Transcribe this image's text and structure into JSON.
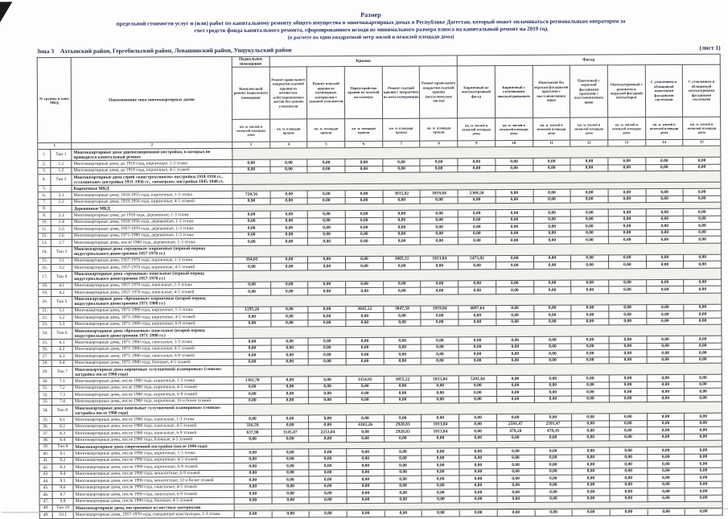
{
  "page": {
    "title_lines": [
      "Размер",
      "предельной стоимости услуг и (или) работ по капитальному ремонту общего имущества в многоквартирных домах в Республике Дагестан, который может оплачиваться региональным оператором  за",
      "счет средств фонда капитального ремонта, сформированного исходя из минимального размера взноса на капитальный ремонт на 2019 год",
      "(в расчете на один квадратный метр жилой и нежилой площади дома)"
    ],
    "zone_label": "Зона 3",
    "zone_text": "Ахтынский район, Гергебильский район, Левашинский район, Унцукульский район",
    "sheet_label": "(лист 1)"
  },
  "table": {
    "corner_header": "№ группы и зоны МКД",
    "name_header": "Наименование типа многоквартирных домов",
    "groups": [
      {
        "label": "Подвальное помещение",
        "span": 1
      },
      {
        "label": "Крыша",
        "span": 5
      },
      {
        "label": "Фасад",
        "span": 7
      }
    ],
    "value_columns": [
      {
        "label": "Комплексный ремонт подвального помещения",
        "unit": "кв. м. жилой и нежилой площади дома"
      },
      {
        "label": "Ремонт кровельного покрытия скатной крыши из волнистых асбестоцементных листов без замены утеплителя",
        "unit": "кв. м. площади кровли"
      },
      {
        "label": "Ремонт плоской крыши из полимерных материалов с заменой утеплителя",
        "unit": "кв. м. площади кровли"
      },
      {
        "label": "Переустройство крыши из плоской на скатную",
        "unit": "кв. м. площади кровли"
      },
      {
        "label": "Ремонт скатной крыши с покрытием из металлочерепицы",
        "unit": "кв. м. площади кровли"
      },
      {
        "label": "Ремонт кровельного покрытия скатной крыши (металлические листы)",
        "unit": "кв. м. площади кровли"
      },
      {
        "label": "Кирпичный не оштукатуренный фасад",
        "unit": "кв. м. жилой и нежилой площади дома"
      },
      {
        "label": "Кирпичный с утепляющим оштукатуриванием",
        "unit": "кв. м. жилой и нежилой площади дома"
      },
      {
        "label": "Панельный без окраски фасадными красками с восстановлением швов",
        "unit": "кв. м. жилой и нежилой площади дома"
      },
      {
        "label": "Панельный с окраской фасадными красками с восстановлением швов",
        "unit": "кв. м. жилой и нежилой площади дома"
      },
      {
        "label": "Оштукатуренный с ремонтом и окраской фасадной штукатурки",
        "unit": "кв. м. жилой и нежилой площади дома"
      },
      {
        "label": "С утеплением и облицовкой навесными фасадными системами",
        "unit": "кв. м. жилой и нежилой площади дома"
      },
      {
        "label": "С утеплением и облицовкой штукатурными фасадными системами",
        "unit": "кв. м. жилой и нежилой площади дома"
      }
    ],
    "column_numbers": [
      "1",
      "2",
      "3",
      "4",
      "5",
      "6",
      "7",
      "8",
      "9",
      "10",
      "11",
      "12",
      "13",
      "14",
      "15"
    ],
    "zero_value": "0,00",
    "rows": [
      {
        "no": "1.",
        "code": "Тип 1",
        "kind": "group",
        "name": "Многоквартирные дома дореволюционной постройки, в которых не проводился капитальный ремонт"
      },
      {
        "no": "2.",
        "code": "1.1",
        "name": "Многоквартирные дома, до 1918 года, кирпичные, 1-3 этажа"
      },
      {
        "no": "3.",
        "code": "1.2",
        "name": "Многоквартирные дома, до 1918 года, кирпичные, 4-5 этажей"
      },
      {
        "no": "4.",
        "code": "Тип 2",
        "kind": "group",
        "name": "Многоквартирные дома серий «конструктивизм» постройки 1918-1930 гг., «сталинские» постройки 1931-1956 гг., «немецкие» постройки 1945-1948 гг."
      },
      {
        "no": "5.",
        "code": "",
        "kind": "sub",
        "name": "Кирпичные МКД"
      },
      {
        "no": "6.",
        "code": "2.1",
        "name": "Многоквартирные дома, 1918-1955 года, кирпичные, 1-3 этажа",
        "values": [
          "720,56",
          "0,00",
          "0,00",
          "0,00",
          "3015,92",
          "1019,84",
          "5369,50",
          "0,00",
          "0,00",
          "0,00",
          "0,00",
          "0,00",
          "0,00"
        ]
      },
      {
        "no": "7.",
        "code": "2.2",
        "name": "Многоквартирные дома, 1918-1956 года, кирпичные, 4-5 этажей"
      },
      {
        "no": "8.",
        "code": "",
        "kind": "sub",
        "name": "Деревянные МКД"
      },
      {
        "no": "9.",
        "code": "2.3",
        "name": "Многоквартирные дома, до 1918 года, деревянные, 1-3 этажа"
      },
      {
        "no": "10.",
        "code": "2.4",
        "name": "Многоквартирные дома, 1918-1956 года, деревянные, 1-3 этажа"
      },
      {
        "no": "11.",
        "code": "2.5",
        "name": "Многоквартирные дома, 1957-1970 года, деревянные, 1-3 этажа"
      },
      {
        "no": "12.",
        "code": "2.6",
        "name": "Многоквартирные дома, 1971-1980 года, деревянные, 1-3 этажа"
      },
      {
        "no": "13.",
        "code": "2.7",
        "name": "Многоквартирные дома, после 1980 года, деревянные, 1-3 этажа"
      },
      {
        "no": "14.",
        "code": "Тип 3",
        "kind": "group",
        "name": "Многоквартирные дома «хрущевки» кирпичные (первый период индустриального домостроения 1957-1970 гг.)"
      },
      {
        "no": "15.",
        "code": "3.1",
        "name": "Многоквартирные дома, 1957-1970 года, кирпичные, 1-3 этажа",
        "values": [
          "394,05",
          "0,00",
          "0,00",
          "0,00",
          "3005,31",
          "1013,84",
          "5473,82",
          "0,00",
          "0,00",
          "0,00",
          "0,00",
          "0,00",
          "0,00"
        ]
      },
      {
        "no": "16.",
        "code": "3.2",
        "name": "Многоквартирные дома, 1957-1970 года, кирпичные, 4-5 этажей"
      },
      {
        "no": "17.",
        "code": "Тип 4",
        "kind": "group",
        "name": "Многоквартирные дома «хрущевки» панельные (первый период индустриального домостроения 1957-1970 гг.)"
      },
      {
        "no": "18.",
        "code": "4.1",
        "name": "Многоквартирные дома, 1957-1970 года, панельные, 1-3 этажа"
      },
      {
        "no": "19.",
        "code": "4.2",
        "name": "Многоквартирные дома, 1957-1970 года, панельные, 4-5 этажей"
      },
      {
        "no": "20.",
        "code": "Тип 5",
        "kind": "group",
        "name": "Многоквартирные дома «брежневки» кирпичные (второй период индустриального домостроения 1971-1980 гг.)"
      },
      {
        "no": "21.",
        "code": "5.1",
        "name": "Многоквартирные дома, 1971-1980 года, кирпичные, 1-3 этажа",
        "values": [
          "1295,26",
          "0,00",
          "0,00",
          "3045,12",
          "3047,58",
          "1019,84",
          "4697,64",
          "0,00",
          "0,00",
          "0,00",
          "0,00",
          "0,00",
          "0,00"
        ]
      },
      {
        "no": "22.",
        "code": "5.2",
        "name": "Многоквартирные дома, 1971-1980 года, кирпичные, 4-5 этажей"
      },
      {
        "no": "23.",
        "code": "5.3",
        "name": "Многоквартирные дома, 1971-1980 года, кирпичные, 6-9 этажей"
      },
      {
        "no": "24.",
        "code": "Тип 6",
        "kind": "group",
        "name": "Многоквартирные дома «брежневки» панельные (второй период индустриального домостроения 1971-1980 гг.)"
      },
      {
        "no": "25.",
        "code": "6.1",
        "name": "Многоквартирные дома, 1971-1980 года, панельные, 1-3 этажа"
      },
      {
        "no": "26.",
        "code": "6.2",
        "name": "Многоквартирные дома, 1971-1980 года, панельные, 4-5 этажей"
      },
      {
        "no": "27.",
        "code": "6.3",
        "name": "Многоквартирные дома, 1971-1980 года, панельные, 6-9 этажей"
      },
      {
        "no": "28.",
        "code": "6.4",
        "name": "Многоквартирные дома, 1971-1980 года, блочные, 4-5 этажей"
      },
      {
        "no": "29.",
        "code": "Тип 7",
        "kind": "group",
        "name": "Многоквартирные дома кирпичные «улучшенной планировки» («новая» застройка после 1980 года)"
      },
      {
        "no": "30.",
        "code": "7.1",
        "name": "Многоквартирные дома, после 1980 года, кирпичные, 1-3 этажа",
        "values": [
          "1361,70",
          "0,00",
          "0,00",
          "3354,95",
          "3055,22",
          "1015,84",
          "5281,84",
          "0,00",
          "0,00",
          "0,00",
          "0,00",
          "0,00",
          "0,00"
        ]
      },
      {
        "no": "31.",
        "code": "7.2",
        "name": "Многоквартирные дома, после 1980 года, кирпичные, 4-5 этажей"
      },
      {
        "no": "32.",
        "code": "7.3",
        "name": "Многоквартирные дома, после 1980 года, кирпичные, 6-9 этажей"
      },
      {
        "no": "33.",
        "code": "7.4",
        "name": "Многоквартирные дома, после 1980 года, кирпичные, 10 и более этажей"
      },
      {
        "no": "34.",
        "code": "Тип 8",
        "kind": "group",
        "name": "Многоквартирные дома панельные «улучшенной планировки» («новая» застройка после 1980 года)"
      },
      {
        "no": "35.",
        "code": "8.1",
        "name": "Многоквартирные дома, после 1980 года, панельные, 1-3 этажа"
      },
      {
        "no": "36.",
        "code": "8.2",
        "name": "Многоквартирные дома, после 1980 года, панельные, 4-5 этажей",
        "values": [
          "316,59",
          "0,00",
          "0,00",
          "4103,26",
          "2920,83",
          "1013,84",
          "0,00",
          "2591,47",
          "2591,47",
          "0,00",
          "0,00",
          "0,00",
          "0,00"
        ]
      },
      {
        "no": "37.",
        "code": "8.3",
        "name": "Многоквартирные дома, после 1980 года, панельные, 6-9 этажей",
        "values": [
          "637,98",
          "1145,47",
          "2253,04",
          "0,00",
          "2920,83",
          "1013,84",
          "0,00",
          "479,28",
          "478,39",
          "0,00",
          "0,00",
          "0,00",
          "0,00"
        ]
      },
      {
        "no": "38.",
        "code": "8.4",
        "name": "Многоквартирные дома, после 1980 года, блочные, 4-5 этажей"
      },
      {
        "no": "39.",
        "code": "Тип 9",
        "kind": "group",
        "name": "Многоквартирные дома современной постройки (после 1990 года)"
      },
      {
        "no": "40.",
        "code": "9.1",
        "name": "Многоквартирные дома, после 1990 года, кирпичные, 1-3 этажа"
      },
      {
        "no": "41.",
        "code": "9.2",
        "name": "Многоквартирные дома, после 1990 года, кирпичные, 4-5 этажей"
      },
      {
        "no": "42.",
        "code": "9.3",
        "name": "Многоквартирные дома, после 1990 года, кирпичные, 6-9 этажей"
      },
      {
        "no": "43.",
        "code": "9.4",
        "name": "Многоквартирные дома, после 1990 года, монолитные, 6-9 этажей"
      },
      {
        "no": "44.",
        "code": "9.5",
        "name": "Многоквартирные дома, после 1990 года, монолитные, 10 и более этажей"
      },
      {
        "no": "45.",
        "code": "9.6",
        "name": "Многоквартирные дома, после 1990 года, панельные, 4-5 этажей"
      },
      {
        "no": "46.",
        "code": "9.7",
        "name": "Многоквартирные дома, после 1990 года, панельные, 6-9 этажей"
      },
      {
        "no": "47.",
        "code": "9.8",
        "name": "Многоквартирные дома, после 1990 года, блочные, 4-5 этажей"
      },
      {
        "no": "48.",
        "code": "Тип 10",
        "kind": "group",
        "name": "Многоквартирные дома, построенные из местных материалов"
      },
      {
        "no": "49.",
        "code": "10.1",
        "name": "Многоквартирные дома, 1957-1970 года, смешанные конструкции, 1-3 этажа"
      }
    ]
  }
}
